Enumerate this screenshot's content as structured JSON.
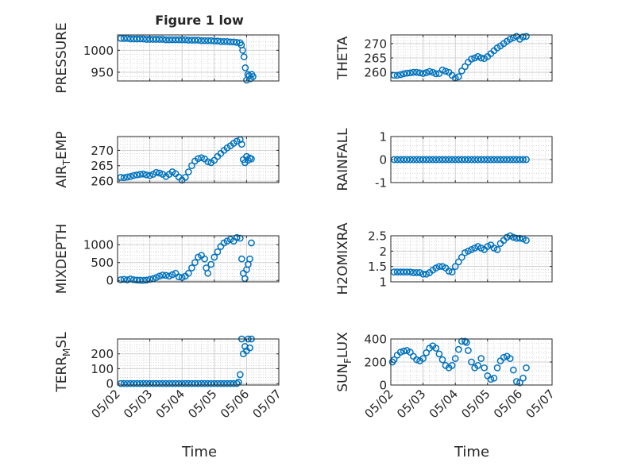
{
  "figure": {
    "title": "Figure 1 low",
    "xlabel": "Time",
    "x_tick_labels": [
      "05/02",
      "05/03",
      "05/04",
      "05/05",
      "05/06",
      "05/07"
    ]
  },
  "colors": {
    "marker": "#0072BD",
    "axis": "#262626",
    "grid": "#b0b0b0",
    "background": "#ffffff"
  },
  "chart_data": [
    {
      "type": "scatter",
      "ylabel": "PRESSURE",
      "title": "Figure 1 low",
      "xlim": [
        "05/02",
        "05/07"
      ],
      "ylim": [
        930,
        1035
      ],
      "yticks": [
        950,
        1000
      ],
      "ytick_labels": [
        "950",
        "1000"
      ],
      "grid": true,
      "minor_grid": true,
      "x": [
        2.1,
        2.2,
        2.3,
        2.4,
        2.5,
        2.6,
        2.7,
        2.8,
        2.9,
        3.0,
        3.1,
        3.2,
        3.3,
        3.4,
        3.5,
        3.6,
        3.7,
        3.8,
        3.9,
        4.0,
        4.1,
        4.2,
        4.3,
        4.4,
        4.5,
        4.6,
        4.7,
        4.8,
        4.9,
        5.0,
        5.1,
        5.2,
        5.3,
        5.4,
        5.5,
        5.6,
        5.7,
        5.8,
        5.84,
        5.88,
        5.92,
        5.96,
        6.0,
        6.04,
        6.08,
        6.12,
        6.16,
        6.2
      ],
      "y": [
        1027,
        1027,
        1027,
        1026,
        1026,
        1026,
        1026,
        1026,
        1025,
        1025,
        1025,
        1025,
        1025,
        1025,
        1024,
        1024,
        1024,
        1024,
        1024,
        1024,
        1024,
        1023,
        1023,
        1023,
        1023,
        1022,
        1022,
        1022,
        1022,
        1021,
        1021,
        1020,
        1020,
        1020,
        1019,
        1019,
        1018,
        1017,
        1012,
        1000,
        985,
        960,
        932,
        945,
        942,
        935,
        945,
        940
      ]
    },
    {
      "type": "scatter",
      "ylabel": "THETA",
      "xlim": [
        "05/02",
        "05/07"
      ],
      "ylim": [
        257,
        273
      ],
      "yticks": [
        260,
        265,
        270
      ],
      "ytick_labels": [
        "260",
        "265",
        "270"
      ],
      "grid": true,
      "minor_grid": true,
      "x": [
        2.1,
        2.2,
        2.3,
        2.4,
        2.5,
        2.6,
        2.7,
        2.8,
        2.9,
        3.0,
        3.1,
        3.2,
        3.3,
        3.4,
        3.5,
        3.6,
        3.7,
        3.8,
        3.9,
        4.0,
        4.1,
        4.2,
        4.3,
        4.4,
        4.5,
        4.6,
        4.7,
        4.8,
        4.9,
        5.0,
        5.1,
        5.2,
        5.3,
        5.4,
        5.5,
        5.6,
        5.7,
        5.8,
        5.9,
        6.0,
        6.1,
        6.2
      ],
      "y": [
        259,
        259,
        259.2,
        259.5,
        259.7,
        259.8,
        260,
        260,
        259.8,
        259.6,
        259.9,
        260.3,
        260,
        259.5,
        259.6,
        260.8,
        260.4,
        260,
        259,
        258,
        258.5,
        260.5,
        262,
        263.5,
        264.6,
        265,
        265.5,
        265,
        264.8,
        265.5,
        266.5,
        267.5,
        268.5,
        269.2,
        270,
        270.8,
        271.5,
        272,
        272.5,
        271.5,
        272.3,
        272.5
      ]
    },
    {
      "type": "scatter",
      "ylabel": "AIR_TEMP",
      "xlim": [
        "05/02",
        "05/07"
      ],
      "ylim": [
        259.5,
        274.5
      ],
      "yticks": [
        260,
        265,
        270
      ],
      "ytick_labels": [
        "260",
        "265",
        "270"
      ],
      "grid": true,
      "minor_grid": true,
      "x": [
        2.1,
        2.2,
        2.3,
        2.4,
        2.5,
        2.6,
        2.7,
        2.8,
        2.9,
        3.0,
        3.1,
        3.2,
        3.3,
        3.4,
        3.5,
        3.6,
        3.7,
        3.8,
        3.9,
        4.0,
        4.1,
        4.2,
        4.3,
        4.4,
        4.5,
        4.6,
        4.7,
        4.8,
        4.9,
        5.0,
        5.1,
        5.2,
        5.3,
        5.4,
        5.5,
        5.6,
        5.7,
        5.8,
        5.85,
        5.9,
        5.95,
        6.0,
        6.05,
        6.1,
        6.15
      ],
      "y": [
        261.2,
        261.1,
        261.3,
        261.5,
        261.8,
        262,
        262.2,
        262.3,
        262,
        261.8,
        262.2,
        262.8,
        262.6,
        262.2,
        261.5,
        262.2,
        263,
        262.4,
        261.3,
        260.3,
        261.2,
        263,
        265,
        266.5,
        267.3,
        267.6,
        267.2,
        266.3,
        266,
        266.8,
        268,
        269,
        270,
        270.8,
        271.5,
        272.3,
        273,
        273.5,
        272,
        267,
        266,
        268,
        266.8,
        267.5,
        267.2
      ]
    },
    {
      "type": "scatter",
      "ylabel": "RAINFALL",
      "xlim": [
        "05/02",
        "05/07"
      ],
      "ylim": [
        -1,
        1
      ],
      "yticks": [
        -1,
        0,
        1
      ],
      "ytick_labels": [
        "-1",
        "0",
        "1"
      ],
      "grid": true,
      "minor_grid": true,
      "x": [
        2.1,
        2.2,
        2.3,
        2.4,
        2.5,
        2.6,
        2.7,
        2.8,
        2.9,
        3.0,
        3.1,
        3.2,
        3.3,
        3.4,
        3.5,
        3.6,
        3.7,
        3.8,
        3.9,
        4.0,
        4.1,
        4.2,
        4.3,
        4.4,
        4.5,
        4.6,
        4.7,
        4.8,
        4.9,
        5.0,
        5.1,
        5.2,
        5.3,
        5.4,
        5.5,
        5.6,
        5.7,
        5.8,
        5.9,
        6.0,
        6.1,
        6.2
      ],
      "y": [
        0,
        0,
        0,
        0,
        0,
        0,
        0,
        0,
        0,
        0,
        0,
        0,
        0,
        0,
        0,
        0,
        0,
        0,
        0,
        0,
        0,
        0,
        0,
        0,
        0,
        0,
        0,
        0,
        0,
        0,
        0,
        0,
        0,
        0,
        0,
        0,
        0,
        0,
        0,
        0,
        0,
        0
      ]
    },
    {
      "type": "scatter",
      "ylabel": "MIXDEPTH",
      "xlim": [
        "05/02",
        "05/07"
      ],
      "ylim": [
        -40,
        1250
      ],
      "yticks": [
        0,
        500,
        1000
      ],
      "ytick_labels": [
        "0",
        "500",
        "1000"
      ],
      "grid": true,
      "minor_grid": true,
      "x": [
        2.1,
        2.2,
        2.3,
        2.4,
        2.5,
        2.6,
        2.7,
        2.8,
        2.9,
        3.0,
        3.1,
        3.2,
        3.3,
        3.4,
        3.5,
        3.6,
        3.7,
        3.8,
        3.9,
        4.0,
        4.1,
        4.2,
        4.3,
        4.4,
        4.5,
        4.6,
        4.7,
        4.75,
        4.8,
        4.9,
        5.0,
        5.1,
        5.2,
        5.3,
        5.4,
        5.5,
        5.6,
        5.7,
        5.8,
        5.85,
        5.9,
        5.95,
        6.0,
        6.05,
        6.1,
        6.15
      ],
      "y": [
        20,
        30,
        15,
        40,
        20,
        10,
        5,
        0,
        10,
        30,
        50,
        80,
        120,
        150,
        140,
        120,
        160,
        200,
        100,
        80,
        120,
        200,
        350,
        500,
        650,
        700,
        600,
        350,
        200,
        450,
        650,
        800,
        950,
        1050,
        1100,
        1150,
        1100,
        1200,
        1180,
        600,
        200,
        50,
        300,
        450,
        600,
        1050
      ]
    },
    {
      "type": "scatter",
      "ylabel": "H2OMIXRA",
      "xlim": [
        "05/02",
        "05/07"
      ],
      "ylim": [
        1,
        2.5
      ],
      "yticks": [
        1,
        1.5,
        2,
        2.5
      ],
      "ytick_labels": [
        "1",
        "1.5",
        "2",
        "2.5"
      ],
      "grid": true,
      "minor_grid": true,
      "x": [
        2.1,
        2.2,
        2.3,
        2.4,
        2.5,
        2.6,
        2.7,
        2.8,
        2.9,
        3.0,
        3.1,
        3.2,
        3.3,
        3.4,
        3.5,
        3.6,
        3.7,
        3.8,
        3.9,
        4.0,
        4.1,
        4.2,
        4.3,
        4.4,
        4.5,
        4.6,
        4.7,
        4.8,
        4.9,
        5.0,
        5.1,
        5.2,
        5.3,
        5.4,
        5.5,
        5.6,
        5.7,
        5.8,
        5.9,
        6.0,
        6.1,
        6.2
      ],
      "y": [
        1.32,
        1.32,
        1.32,
        1.32,
        1.32,
        1.32,
        1.3,
        1.3,
        1.3,
        1.25,
        1.25,
        1.3,
        1.38,
        1.45,
        1.5,
        1.5,
        1.45,
        1.35,
        1.32,
        1.5,
        1.65,
        1.8,
        1.95,
        2.0,
        2.05,
        2.1,
        2.15,
        2.1,
        2.05,
        2.15,
        2.2,
        2.1,
        2.05,
        2.25,
        2.35,
        2.45,
        2.5,
        2.45,
        2.42,
        2.42,
        2.4,
        2.35
      ]
    },
    {
      "type": "scatter",
      "ylabel": "TERR_MSL",
      "xlim": [
        "05/02",
        "05/07"
      ],
      "ylim": [
        -10,
        300
      ],
      "yticks": [
        0,
        100,
        200
      ],
      "ytick_labels": [
        "0",
        "100",
        "200"
      ],
      "grid": true,
      "minor_grid": true,
      "x": [
        2.1,
        2.2,
        2.3,
        2.4,
        2.5,
        2.6,
        2.7,
        2.8,
        2.9,
        3.0,
        3.1,
        3.2,
        3.3,
        3.4,
        3.5,
        3.6,
        3.7,
        3.8,
        3.9,
        4.0,
        4.1,
        4.2,
        4.3,
        4.4,
        4.5,
        4.6,
        4.7,
        4.8,
        4.9,
        5.0,
        5.1,
        5.2,
        5.3,
        5.4,
        5.5,
        5.6,
        5.7,
        5.75,
        5.8,
        5.85,
        5.9,
        5.95,
        6.0,
        6.05,
        6.1,
        6.15
      ],
      "y": [
        0,
        0,
        0,
        0,
        0,
        0,
        0,
        0,
        0,
        0,
        0,
        0,
        0,
        0,
        0,
        0,
        0,
        0,
        0,
        0,
        0,
        0,
        0,
        0,
        0,
        0,
        0,
        0,
        0,
        0,
        0,
        0,
        0,
        0,
        0,
        0,
        0,
        10,
        60,
        300,
        200,
        250,
        220,
        300,
        240,
        300
      ]
    },
    {
      "type": "scatter",
      "ylabel": "SUN_FLUX",
      "xlim": [
        "05/02",
        "05/07"
      ],
      "ylim": [
        0,
        400
      ],
      "yticks": [
        0,
        200,
        400
      ],
      "ytick_labels": [
        "0",
        "200",
        "400"
      ],
      "grid": true,
      "minor_grid": true,
      "x": [
        2.05,
        2.1,
        2.2,
        2.3,
        2.4,
        2.5,
        2.6,
        2.7,
        2.8,
        2.9,
        3.0,
        3.1,
        3.2,
        3.3,
        3.4,
        3.5,
        3.6,
        3.7,
        3.8,
        3.9,
        4.0,
        4.1,
        4.2,
        4.3,
        4.35,
        4.4,
        4.5,
        4.6,
        4.7,
        4.8,
        4.9,
        5.0,
        5.1,
        5.2,
        5.3,
        5.4,
        5.5,
        5.6,
        5.7,
        5.8,
        5.9,
        6.0,
        6.1,
        6.2
      ],
      "y": [
        200,
        220,
        260,
        285,
        295,
        300,
        285,
        250,
        220,
        210,
        230,
        280,
        320,
        340,
        320,
        270,
        220,
        170,
        150,
        170,
        230,
        310,
        380,
        380,
        370,
        300,
        200,
        150,
        170,
        230,
        150,
        80,
        50,
        60,
        150,
        210,
        240,
        250,
        230,
        130,
        30,
        20,
        60,
        150
      ]
    }
  ]
}
